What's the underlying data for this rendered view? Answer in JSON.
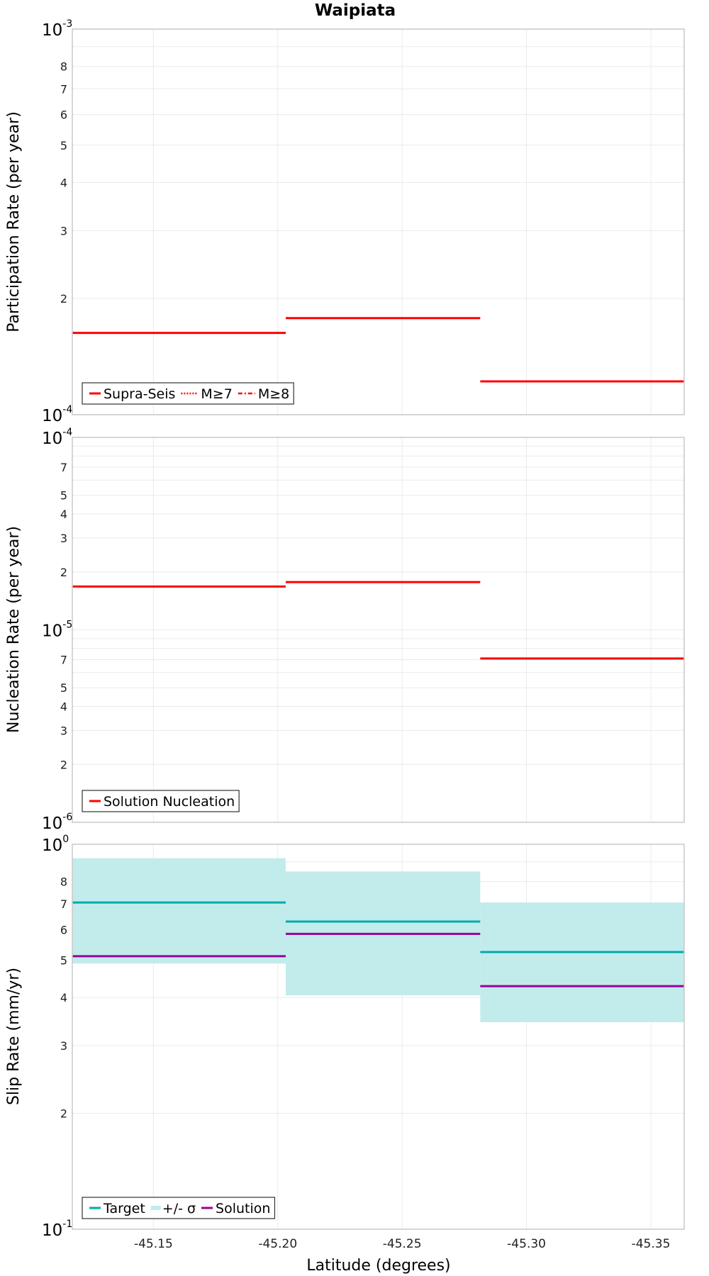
{
  "chart_data": {
    "title": "Waipiata",
    "xlabel": "Latitude (degrees)",
    "x_ticks": [
      -45.15,
      -45.2,
      -45.25,
      -45.3,
      -45.35
    ],
    "x_tick_labels": [
      "-45.15",
      "-45.20",
      "-45.25",
      "-45.30",
      "-45.35"
    ],
    "xlim": [
      -45.1174,
      -45.3634
    ],
    "x_reversed": true,
    "panels": [
      {
        "type": "step",
        "ylabel": "Participation Rate (per year)",
        "yscale": "log",
        "ylim": [
          0.0001,
          0.001
        ],
        "decade_labels": [
          {
            "base": "10",
            "exp": "-4",
            "value": 0.0001
          },
          {
            "base": "10",
            "exp": "-3",
            "value": 0.001
          }
        ],
        "minor_ticks": [
          {
            "label": "2",
            "value": 0.0002
          },
          {
            "label": "3",
            "value": 0.0003
          },
          {
            "label": "4",
            "value": 0.0004
          },
          {
            "label": "5",
            "value": 0.0005
          },
          {
            "label": "6",
            "value": 0.0006
          },
          {
            "label": "7",
            "value": 0.0007
          },
          {
            "label": "8",
            "value": 0.0008
          }
        ],
        "grid_values": [
          0.0002,
          0.0003,
          0.0004,
          0.0005,
          0.0006,
          0.0007,
          0.0008,
          0.0009
        ],
        "legend": [
          {
            "name": "Supra-Seis",
            "style": "solid",
            "color": "#ff0000"
          },
          {
            "name": "M≥7",
            "style": "dotted",
            "color": "#ff0000"
          },
          {
            "name": "M≥8",
            "style": "dashdot",
            "color": "#ff0000"
          }
        ],
        "series": [
          {
            "name": "Supra-Seis",
            "color": "#ff0000",
            "style": "solid",
            "segments": [
              {
                "x0": -45.1174,
                "x1": -45.2032,
                "y": 0.000163
              },
              {
                "x0": -45.2032,
                "x1": -45.2814,
                "y": 0.000178
              },
              {
                "x0": -45.2814,
                "x1": -45.3634,
                "y": 0.000122
              }
            ]
          }
        ]
      },
      {
        "type": "step",
        "ylabel": "Nucleation Rate (per year)",
        "yscale": "log",
        "ylim": [
          1e-06,
          0.0001
        ],
        "decade_labels": [
          {
            "base": "10",
            "exp": "-6",
            "value": 1e-06
          },
          {
            "base": "10",
            "exp": "-5",
            "value": 1e-05
          },
          {
            "base": "10",
            "exp": "-4",
            "value": 0.0001
          }
        ],
        "minor_ticks": [
          {
            "label": "2",
            "value": 2e-06
          },
          {
            "label": "3",
            "value": 3e-06
          },
          {
            "label": "4",
            "value": 4e-06
          },
          {
            "label": "5",
            "value": 5e-06
          },
          {
            "label": "7",
            "value": 7e-06
          },
          {
            "label": "2",
            "value": 2e-05
          },
          {
            "label": "3",
            "value": 3e-05
          },
          {
            "label": "4",
            "value": 4e-05
          },
          {
            "label": "5",
            "value": 5e-05
          },
          {
            "label": "7",
            "value": 7e-05
          }
        ],
        "grid_values": [
          2e-06,
          3e-06,
          4e-06,
          5e-06,
          6e-06,
          7e-06,
          8e-06,
          9e-06,
          1e-05,
          2e-05,
          3e-05,
          4e-05,
          5e-05,
          6e-05,
          7e-05,
          8e-05,
          9e-05
        ],
        "legend": [
          {
            "name": "Solution Nucleation",
            "style": "solid",
            "color": "#ff0000"
          }
        ],
        "series": [
          {
            "name": "Solution Nucleation",
            "color": "#ff0000",
            "style": "solid",
            "segments": [
              {
                "x0": -45.1174,
                "x1": -45.2032,
                "y": 1.68e-05
              },
              {
                "x0": -45.2032,
                "x1": -45.2814,
                "y": 1.77e-05
              },
              {
                "x0": -45.2814,
                "x1": -45.3634,
                "y": 7.1e-06
              }
            ]
          }
        ]
      },
      {
        "type": "step",
        "ylabel": "Slip Rate (mm/yr)",
        "yscale": "log",
        "ylim": [
          0.1,
          1
        ],
        "decade_labels": [
          {
            "base": "10",
            "exp": "-1",
            "value": 0.1
          },
          {
            "base": "10",
            "exp": "0",
            "value": 1
          }
        ],
        "minor_ticks": [
          {
            "label": "2",
            "value": 0.2
          },
          {
            "label": "3",
            "value": 0.3
          },
          {
            "label": "4",
            "value": 0.4
          },
          {
            "label": "5",
            "value": 0.5
          },
          {
            "label": "6",
            "value": 0.6
          },
          {
            "label": "7",
            "value": 0.7
          },
          {
            "label": "8",
            "value": 0.8
          }
        ],
        "grid_values": [
          0.2,
          0.3,
          0.4,
          0.5,
          0.6,
          0.7,
          0.8,
          0.9
        ],
        "legend": [
          {
            "name": "Target",
            "style": "solid",
            "color": "#00aaaa"
          },
          {
            "name": "+/- σ",
            "style": "band",
            "color": "#c2ecec"
          },
          {
            "name": "Solution",
            "style": "solid",
            "color": "#990099"
          }
        ],
        "bands": [
          {
            "name": "+/- σ",
            "color": "#c2ecec",
            "segments": [
              {
                "x0": -45.1174,
                "x1": -45.2032,
                "y0": 0.49,
                "y1": 0.92
              },
              {
                "x0": -45.2032,
                "x1": -45.2814,
                "y0": 0.405,
                "y1": 0.85
              },
              {
                "x0": -45.2814,
                "x1": -45.3634,
                "y0": 0.345,
                "y1": 0.706
              }
            ]
          }
        ],
        "series": [
          {
            "name": "Target",
            "color": "#00aaaa",
            "style": "solid",
            "segments": [
              {
                "x0": -45.1174,
                "x1": -45.2032,
                "y": 0.706
              },
              {
                "x0": -45.2032,
                "x1": -45.2814,
                "y": 0.63
              },
              {
                "x0": -45.2814,
                "x1": -45.3634,
                "y": 0.525
              }
            ]
          },
          {
            "name": "Solution",
            "color": "#990099",
            "style": "solid",
            "segments": [
              {
                "x0": -45.1174,
                "x1": -45.2032,
                "y": 0.512
              },
              {
                "x0": -45.2032,
                "x1": -45.2814,
                "y": 0.585
              },
              {
                "x0": -45.2814,
                "x1": -45.3634,
                "y": 0.428
              }
            ]
          }
        ]
      }
    ]
  }
}
